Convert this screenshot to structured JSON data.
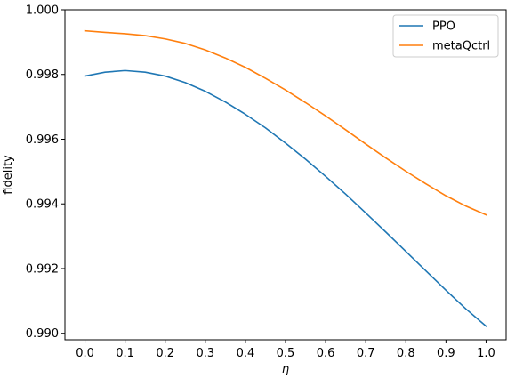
{
  "chart_data": {
    "type": "line",
    "xlabel": "η",
    "ylabel": "fidelity",
    "xlim": [
      -0.05,
      1.05
    ],
    "ylim": [
      0.9898,
      1.0
    ],
    "x_ticks": [
      0.0,
      0.1,
      0.2,
      0.3,
      0.4,
      0.5,
      0.6,
      0.7,
      0.8,
      0.9,
      1.0
    ],
    "x_tick_labels": [
      "0.0",
      "0.1",
      "0.2",
      "0.3",
      "0.4",
      "0.5",
      "0.6",
      "0.7",
      "0.8",
      "0.9",
      "1.0"
    ],
    "y_ticks": [
      0.99,
      0.992,
      0.994,
      0.996,
      0.998,
      1.0
    ],
    "y_tick_labels": [
      "0.990",
      "0.992",
      "0.994",
      "0.996",
      "0.998",
      "1.000"
    ],
    "grid": false,
    "legend_position": "top-right",
    "x": [
      0.0,
      0.05,
      0.1,
      0.15,
      0.2,
      0.25,
      0.3,
      0.35,
      0.4,
      0.45,
      0.5,
      0.55,
      0.6,
      0.65,
      0.7,
      0.75,
      0.8,
      0.85,
      0.9,
      0.95,
      1.0
    ],
    "series": [
      {
        "name": "PPO",
        "color": "#1f77b4",
        "values": [
          0.99795,
          0.99807,
          0.99812,
          0.99807,
          0.99795,
          0.99775,
          0.99748,
          0.99715,
          0.99677,
          0.99635,
          0.99588,
          0.99538,
          0.99485,
          0.9943,
          0.99372,
          0.99313,
          0.99253,
          0.99193,
          0.99133,
          0.99075,
          0.99022
        ]
      },
      {
        "name": "metaQctrl",
        "color": "#ff7f0e",
        "values": [
          0.99935,
          0.9993,
          0.99926,
          0.9992,
          0.9991,
          0.99896,
          0.99876,
          0.99851,
          0.99822,
          0.99788,
          0.99752,
          0.99713,
          0.99672,
          0.99629,
          0.99585,
          0.99542,
          0.99501,
          0.99462,
          0.99425,
          0.99393,
          0.99366
        ]
      }
    ]
  }
}
